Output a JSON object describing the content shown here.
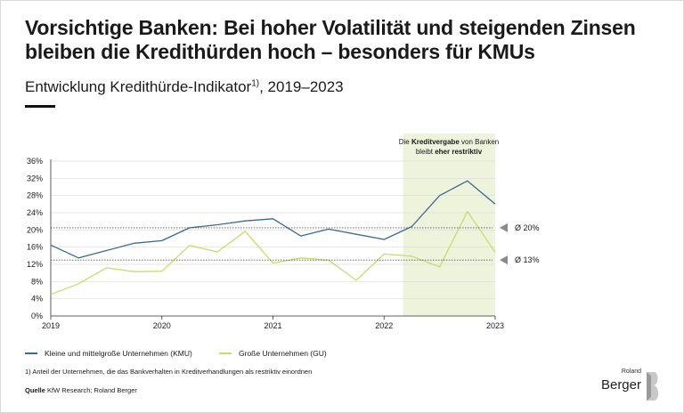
{
  "header": {
    "title": "Vorsichtige Banken: Bei hoher Volatilität und steigenden Zinsen bleiben die Kredithürden hoch – besonders für KMUs",
    "subtitle": "Entwicklung Kredithürde-Indikator",
    "subtitle_sup": "1)",
    "subtitle_suffix": ", 2019–2023"
  },
  "annotation": {
    "line1_pre": "Die ",
    "line1_bold": "Kreditvergabe",
    "line1_post": " von Banken",
    "line2_pre": "bleibt ",
    "line2_bold": "eher restriktiv"
  },
  "chart_data": {
    "type": "line",
    "x_ticks": [
      "2019",
      "2020",
      "2021",
      "2022",
      "2023"
    ],
    "x": [
      2019.0,
      2019.25,
      2019.5,
      2019.75,
      2020.0,
      2020.25,
      2020.5,
      2020.75,
      2021.0,
      2021.25,
      2021.5,
      2021.75,
      2022.0,
      2022.25,
      2022.5,
      2022.75,
      2023.0
    ],
    "series": [
      {
        "name": "Kleine und mittelgroße Unternehmen (KMU)",
        "color": "#3a6a8c",
        "values": [
          16.5,
          13.5,
          15.2,
          16.9,
          17.5,
          20.5,
          21.2,
          22.1,
          22.6,
          18.6,
          20.2,
          19.0,
          17.8,
          20.8,
          28.0,
          31.4,
          26.0
        ]
      },
      {
        "name": "Große Unternehmen (GU)",
        "color": "#c8dc6a",
        "values": [
          5.0,
          7.5,
          11.2,
          10.3,
          10.4,
          16.4,
          14.9,
          19.7,
          12.3,
          13.5,
          13.0,
          8.3,
          14.4,
          13.9,
          11.4,
          24.3,
          14.8
        ]
      }
    ],
    "y_ticks": [
      "0%",
      "4%",
      "8%",
      "12%",
      "16%",
      "20%",
      "24%",
      "28%",
      "32%",
      "36%"
    ],
    "ylim": [
      0,
      36
    ],
    "averages": [
      {
        "label": "Ø 20%",
        "value": 20.5
      },
      {
        "label": "Ø 13%",
        "value": 13.0
      }
    ],
    "shaded_range": [
      2022.17,
      2023.0
    ],
    "shade_color": "#eef3dc",
    "grid": true
  },
  "footnote": "1) Anteil der Unternehmen, die das Bankverhalten in Kreditverhandlungen als restriktiv einordnen",
  "source": {
    "label": "Quelle",
    "text": " KfW Research; Roland Berger"
  },
  "logo": {
    "top": "Roland",
    "bottom": "Berger"
  }
}
